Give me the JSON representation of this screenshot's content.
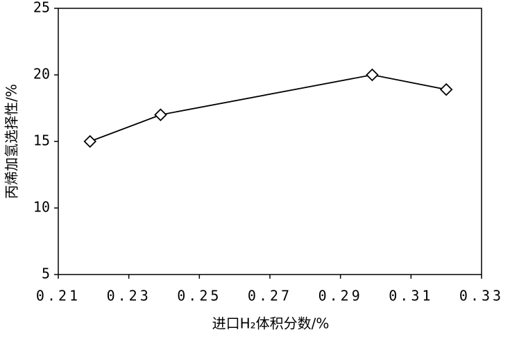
{
  "chart_data": {
    "type": "line",
    "x_label": "进口H₂体积分数/%",
    "y_label": "丙烯加氢选择性/%",
    "x": [
      0.219,
      0.239,
      0.299,
      0.32
    ],
    "series": [
      {
        "color": "#000000",
        "values": [
          15,
          17,
          20,
          18.9
        ]
      }
    ],
    "xlim": [
      0.21,
      0.33
    ],
    "xticks": [
      0.21,
      0.23,
      0.25,
      0.27,
      0.29,
      0.31,
      0.33
    ],
    "ylim": [
      5,
      25
    ],
    "yticks": [
      5,
      10,
      15,
      20,
      25
    ],
    "marker": "diamond",
    "grid": false
  }
}
